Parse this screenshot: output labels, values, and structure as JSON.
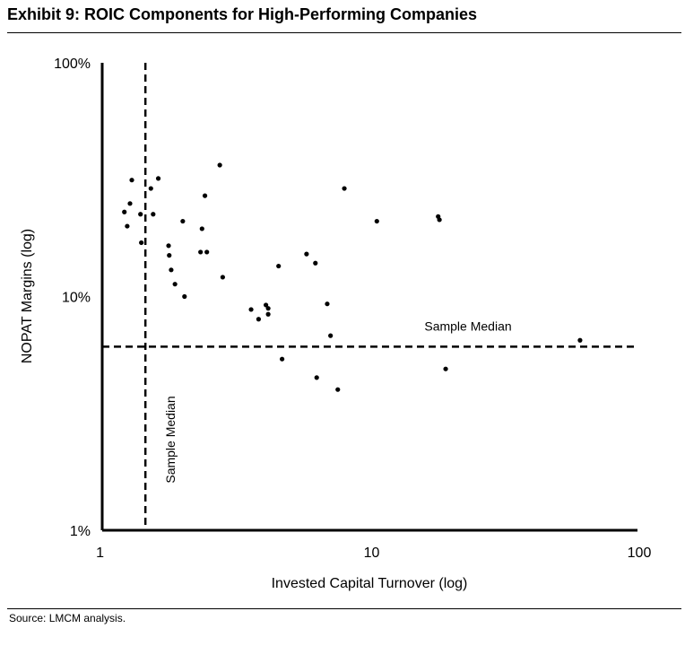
{
  "header": {
    "title": "Exhibit 9: ROIC Components for High-Performing Companies"
  },
  "footer": {
    "source": "Source: LMCM analysis."
  },
  "chart_data": {
    "type": "scatter",
    "title": "Exhibit 9: ROIC Components for High-Performing Companies",
    "xlabel": "Invested Capital Turnover (log)",
    "ylabel": "NOPAT Margins (log)",
    "xscale": "log",
    "yscale": "log",
    "xlim": [
      1,
      100
    ],
    "ylim": [
      1,
      100
    ],
    "x_ticks": [
      1,
      10,
      100
    ],
    "x_tick_labels": [
      "1",
      "10",
      "100"
    ],
    "y_ticks": [
      1,
      10,
      100
    ],
    "y_tick_labels": [
      "1%",
      "10%",
      "100%"
    ],
    "grid": false,
    "legend": "none",
    "reference_lines": [
      {
        "axis": "x",
        "value": 1.45,
        "style": "dashed",
        "label": "Sample Median"
      },
      {
        "axis": "y",
        "value": 6.1,
        "style": "dashed",
        "label": "Sample Median"
      }
    ],
    "points": [
      {
        "x": 1.21,
        "y": 23.0
      },
      {
        "x": 1.24,
        "y": 20.0
      },
      {
        "x": 1.27,
        "y": 25.0
      },
      {
        "x": 1.29,
        "y": 31.5
      },
      {
        "x": 1.39,
        "y": 22.5
      },
      {
        "x": 1.4,
        "y": 17.0
      },
      {
        "x": 1.52,
        "y": 29.0
      },
      {
        "x": 1.55,
        "y": 22.5
      },
      {
        "x": 1.62,
        "y": 32.0
      },
      {
        "x": 1.77,
        "y": 16.5
      },
      {
        "x": 1.78,
        "y": 15.0
      },
      {
        "x": 1.81,
        "y": 13.0
      },
      {
        "x": 1.87,
        "y": 11.3
      },
      {
        "x": 2.0,
        "y": 21.0
      },
      {
        "x": 2.03,
        "y": 10.0
      },
      {
        "x": 2.33,
        "y": 15.5
      },
      {
        "x": 2.36,
        "y": 19.5
      },
      {
        "x": 2.42,
        "y": 27.0
      },
      {
        "x": 2.46,
        "y": 15.5
      },
      {
        "x": 2.75,
        "y": 36.5
      },
      {
        "x": 2.82,
        "y": 12.1
      },
      {
        "x": 3.6,
        "y": 8.8
      },
      {
        "x": 3.84,
        "y": 8.0
      },
      {
        "x": 4.09,
        "y": 9.2
      },
      {
        "x": 4.17,
        "y": 8.4
      },
      {
        "x": 4.17,
        "y": 8.9
      },
      {
        "x": 4.56,
        "y": 13.5
      },
      {
        "x": 4.7,
        "y": 5.4
      },
      {
        "x": 5.8,
        "y": 15.2
      },
      {
        "x": 6.26,
        "y": 13.9
      },
      {
        "x": 6.33,
        "y": 4.5
      },
      {
        "x": 6.93,
        "y": 9.3
      },
      {
        "x": 7.13,
        "y": 6.8
      },
      {
        "x": 7.59,
        "y": 4.0
      },
      {
        "x": 8.03,
        "y": 29.0
      },
      {
        "x": 10.62,
        "y": 21.0
      },
      {
        "x": 18.0,
        "y": 22.0
      },
      {
        "x": 18.2,
        "y": 21.3
      },
      {
        "x": 19.2,
        "y": 4.9
      },
      {
        "x": 61.0,
        "y": 6.5
      }
    ]
  }
}
